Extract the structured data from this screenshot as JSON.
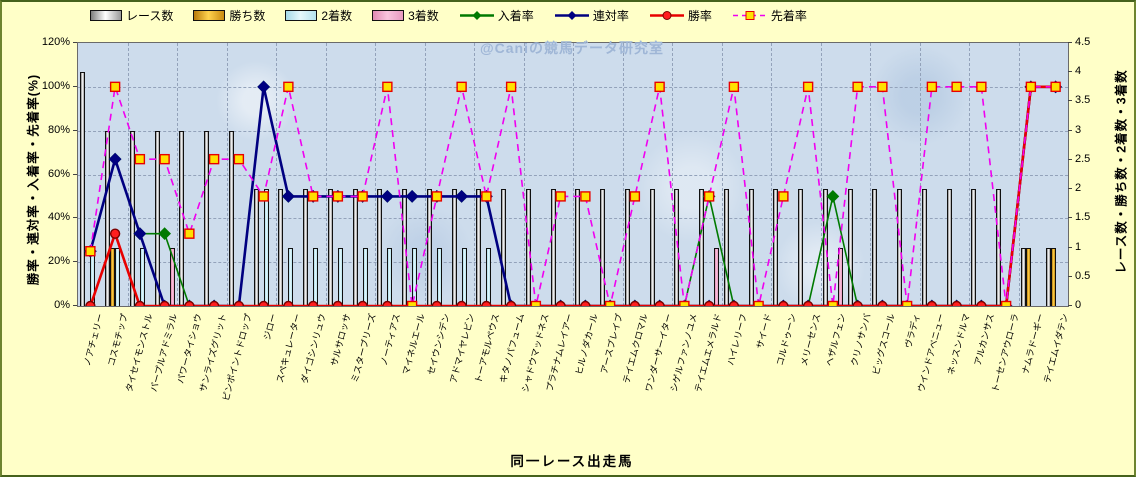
{
  "watermark": "@Caniの競馬データ研究室",
  "x_axis_title": "同一レース出走馬",
  "left_axis_title": "勝率・連対率・入着率・先着率(%)",
  "right_axis_title": "レース数・勝ち数・2着数・3着数",
  "colors": {
    "page_bg": "#ffffc8",
    "plot_bg": "#cddcec",
    "grid": "#93a2ba",
    "race_bar": "gray-white gradient",
    "win_bar": "#f0a800",
    "second_bar": "#c8ecf6",
    "third_bar": "#f2aace",
    "place_line": "#007a00",
    "quinella_line": "#000080",
    "winrate_line": "#e80000",
    "lead_line": "#f000f0",
    "lead_marker_fill": "#ffe100"
  },
  "legend": [
    {
      "label": "レース数",
      "swatch": "bar",
      "key": "races"
    },
    {
      "label": "勝ち数",
      "swatch": "bar",
      "key": "wins"
    },
    {
      "label": "2着数",
      "swatch": "bar",
      "key": "seconds"
    },
    {
      "label": "3着数",
      "swatch": "bar",
      "key": "thirds"
    },
    {
      "label": "入着率",
      "swatch": "line",
      "key": "place"
    },
    {
      "label": "連対率",
      "swatch": "line",
      "key": "quinella"
    },
    {
      "label": "勝率",
      "swatch": "line",
      "key": "winrate"
    },
    {
      "label": "先着率",
      "swatch": "line",
      "key": "lead"
    }
  ],
  "chart_data": {
    "type": "bar",
    "subtype": "bar+line combo (counts on right axis, rates on left axis)",
    "title": "",
    "xlabel": "同一レース出走馬",
    "left_axis": {
      "title": "勝率・連対率・入着率・先着率(%)",
      "min": 0,
      "max": 120,
      "step": 20,
      "unit": "%",
      "ticks": [
        "0%",
        "20%",
        "40%",
        "60%",
        "80%",
        "100%",
        "120%"
      ]
    },
    "right_axis": {
      "title": "レース数・勝ち数・2着数・3着数",
      "min": 0,
      "max": 4.5,
      "step": 0.5,
      "ticks": [
        "0",
        "0.5",
        "1",
        "1.5",
        "2",
        "2.5",
        "3",
        "3.5",
        "4",
        "4.5"
      ]
    },
    "grid": "horizontal major (20%) dashed + vertical every 2 categories dashed",
    "legend_position": "top",
    "categories": [
      "ノアチェリー",
      "コスモチップ",
      "タイセイモンストル",
      "パープルアドミラル",
      "パワータイショウ",
      "サンライズグリット",
      "ピンポイントドロップ",
      "ジロー",
      "スペキュレーター",
      "ダイゴシンリュウ",
      "サルサロッサ",
      "ミスターブリーズ",
      "ノーティアス",
      "マイネルエール",
      "セイウンシデン",
      "アドマイヤレビン",
      "トーアモルペウス",
      "キタノパフューム",
      "シャドウマッドネス",
      "プラチナムレイアー",
      "ヒルノダカール",
      "アースブレイブ",
      "テイエムクロマル",
      "ワンダーサーイター",
      "シゲルファンノユメ",
      "テイエムエメラルド",
      "ハイレリーフ",
      "サイード",
      "コルドゥーン",
      "メリーセンス",
      "ヘザルフェン",
      "クリノサンバ",
      "ビッグスコール",
      "ヴラディ",
      "ウインドアベニュー",
      "ネッスンドルマ",
      "アルカンサス",
      "トーセンアウローラ",
      "ナムラドーギー",
      "テイエムイダテン"
    ],
    "bar_series": [
      {
        "name": "レース数",
        "axis": "right",
        "values": [
          4,
          3,
          3,
          3,
          3,
          3,
          3,
          2,
          2,
          2,
          2,
          2,
          2,
          2,
          2,
          2,
          2,
          2,
          2,
          2,
          2,
          2,
          2,
          2,
          2,
          2,
          2,
          2,
          2,
          2,
          2,
          2,
          2,
          2,
          2,
          2,
          2,
          2,
          1,
          1
        ]
      },
      {
        "name": "勝ち数",
        "axis": "right",
        "values": [
          0,
          1,
          0,
          0,
          0,
          0,
          0,
          0,
          0,
          0,
          0,
          0,
          0,
          0,
          0,
          0,
          0,
          0,
          0,
          0,
          0,
          0,
          0,
          0,
          0,
          0,
          0,
          0,
          0,
          0,
          0,
          0,
          0,
          0,
          0,
          0,
          0,
          0,
          1,
          1
        ]
      },
      {
        "name": "2着数",
        "axis": "right",
        "values": [
          1,
          1,
          1,
          0,
          0,
          0,
          0,
          2,
          1,
          1,
          1,
          1,
          1,
          1,
          1,
          1,
          1,
          0,
          0,
          0,
          0,
          0,
          0,
          0,
          0,
          0,
          0,
          0,
          0,
          0,
          0,
          0,
          0,
          0,
          0,
          0,
          0,
          0,
          0,
          0
        ]
      },
      {
        "name": "3着数",
        "axis": "right",
        "values": [
          0,
          0,
          0,
          1,
          0,
          0,
          0,
          0,
          0,
          0,
          0,
          0,
          0,
          0,
          0,
          0,
          0,
          0,
          0,
          0,
          0,
          0,
          0,
          0,
          0,
          1,
          0,
          0,
          0,
          0,
          1,
          0,
          0,
          0,
          0,
          0,
          0,
          0,
          0,
          0
        ]
      }
    ],
    "line_series": [
      {
        "name": "入着率",
        "axis": "left",
        "style": "solid",
        "color": "#007a00",
        "marker": "diamond",
        "values": [
          25,
          67,
          33,
          33,
          0,
          0,
          0,
          100,
          50,
          50,
          50,
          50,
          50,
          50,
          50,
          50,
          50,
          0,
          0,
          0,
          0,
          0,
          0,
          0,
          0,
          50,
          0,
          0,
          0,
          0,
          50,
          0,
          0,
          0,
          0,
          0,
          0,
          0,
          100,
          100
        ]
      },
      {
        "name": "連対率",
        "axis": "left",
        "style": "solid",
        "color": "#000080",
        "marker": "diamond",
        "values": [
          25,
          67,
          33,
          0,
          0,
          0,
          0,
          100,
          50,
          50,
          50,
          50,
          50,
          50,
          50,
          50,
          50,
          0,
          0,
          0,
          0,
          0,
          0,
          0,
          0,
          0,
          0,
          0,
          0,
          0,
          0,
          0,
          0,
          0,
          0,
          0,
          0,
          0,
          100,
          100
        ]
      },
      {
        "name": "勝率",
        "axis": "left",
        "style": "solid",
        "color": "#e80000",
        "marker": "circle",
        "values": [
          0,
          33,
          0,
          0,
          0,
          0,
          0,
          0,
          0,
          0,
          0,
          0,
          0,
          0,
          0,
          0,
          0,
          0,
          0,
          0,
          0,
          0,
          0,
          0,
          0,
          0,
          0,
          0,
          0,
          0,
          0,
          0,
          0,
          0,
          0,
          0,
          0,
          0,
          100,
          100
        ]
      },
      {
        "name": "先着率",
        "axis": "left",
        "style": "dashed",
        "color": "#f000f0",
        "marker": "square",
        "values": [
          25,
          100,
          67,
          67,
          33,
          67,
          67,
          50,
          100,
          50,
          50,
          50,
          100,
          0,
          50,
          100,
          50,
          100,
          0,
          50,
          50,
          0,
          50,
          100,
          0,
          50,
          100,
          0,
          50,
          100,
          0,
          100,
          100,
          0,
          100,
          100,
          100,
          0,
          100,
          100
        ]
      }
    ]
  }
}
